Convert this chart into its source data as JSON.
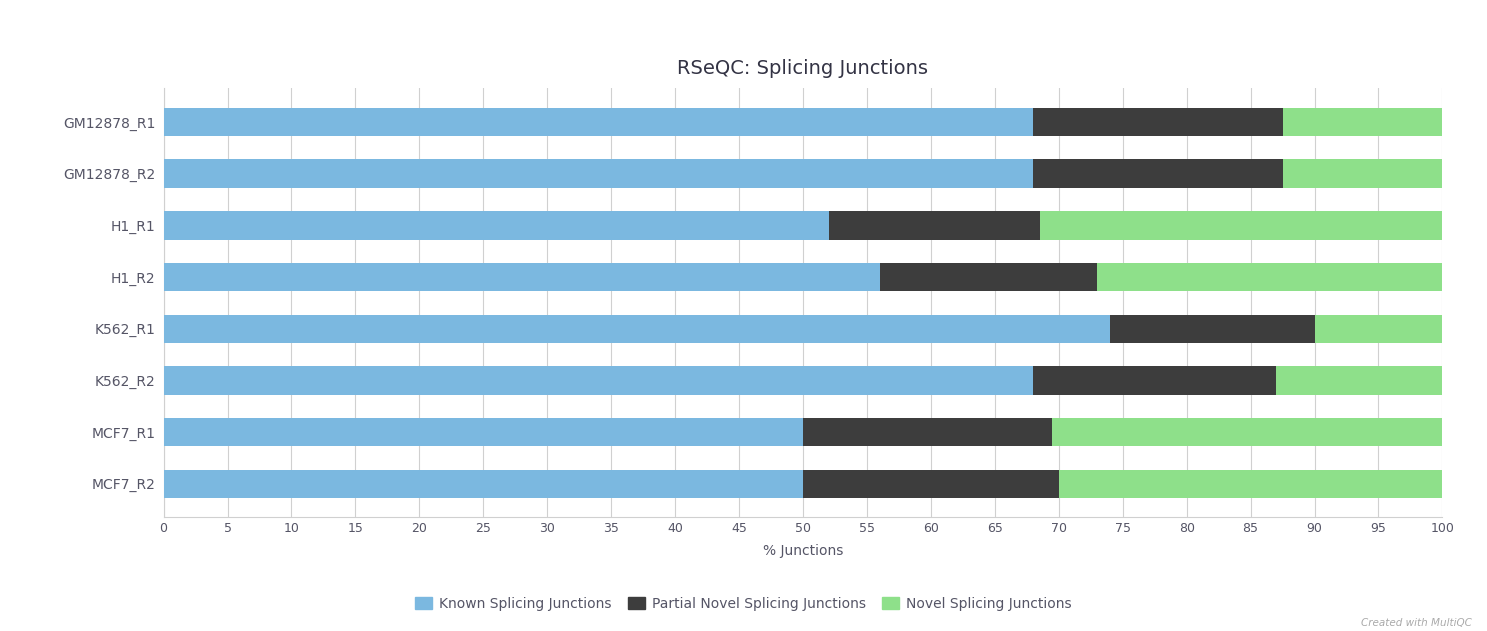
{
  "categories": [
    "GM12878_R1",
    "GM12878_R2",
    "H1_R1",
    "H1_R2",
    "K562_R1",
    "K562_R2",
    "MCF7_R1",
    "MCF7_R2"
  ],
  "known": [
    68.0,
    68.0,
    52.0,
    56.0,
    74.0,
    68.0,
    50.0,
    50.0
  ],
  "partial_novel": [
    19.5,
    19.5,
    16.5,
    17.0,
    16.0,
    19.0,
    19.5,
    20.0
  ],
  "novel": [
    12.5,
    12.5,
    31.5,
    27.0,
    10.0,
    13.0,
    30.5,
    30.0
  ],
  "known_color": "#7bb8e0",
  "partial_novel_color": "#3d3d3d",
  "novel_color": "#8ee08a",
  "title": "RSeQC: Splicing Junctions",
  "xlabel": "% Junctions",
  "xlim": [
    0,
    100
  ],
  "xticks": [
    0,
    5,
    10,
    15,
    20,
    25,
    30,
    35,
    40,
    45,
    50,
    55,
    60,
    65,
    70,
    75,
    80,
    85,
    90,
    95,
    100
  ],
  "legend_labels": [
    "Known Splicing Junctions",
    "Partial Novel Splicing Junctions",
    "Novel Splicing Junctions"
  ],
  "background_color": "#ffffff",
  "grid_color": "#d0d0d0",
  "label_color": "#555566",
  "title_color": "#333344",
  "watermark": "Created with MultiQC",
  "bar_height": 0.55
}
